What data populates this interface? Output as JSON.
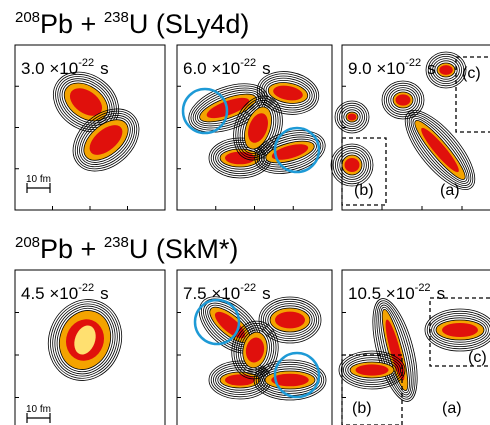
{
  "rows": [
    {
      "title": {
        "a_mass": "208",
        "a_sym": "Pb + ",
        "b_mass": "238",
        "b_sym": "U (SLy4d)"
      },
      "scale": "10 fm",
      "panels": [
        {
          "time": {
            "mantissa": "3.0 ×10",
            "exponent": "-22",
            "unit": "s"
          }
        },
        {
          "time": {
            "mantissa": "6.0 ×10",
            "exponent": "-22",
            "unit": "s"
          }
        },
        {
          "time": {
            "mantissa": "9.0 ×10",
            "exponent": "-22",
            "unit": "s"
          },
          "labels": [
            "(c)",
            "(b)",
            "(a)"
          ]
        }
      ]
    },
    {
      "title": {
        "a_mass": "208",
        "a_sym": "Pb + ",
        "b_mass": "238",
        "b_sym": "U (SkM*)"
      },
      "scale": "10 fm",
      "panels": [
        {
          "time": {
            "mantissa": "4.5 ×10",
            "exponent": "-22",
            "unit": "s"
          }
        },
        {
          "time": {
            "mantissa": "7.5 ×10",
            "exponent": "-22",
            "unit": "s"
          }
        },
        {
          "time": {
            "mantissa": "10.5 ×10",
            "exponent": "-22",
            "unit": "s"
          },
          "labels": [
            "(c)",
            "(b)",
            "(a)"
          ]
        }
      ]
    }
  ]
}
